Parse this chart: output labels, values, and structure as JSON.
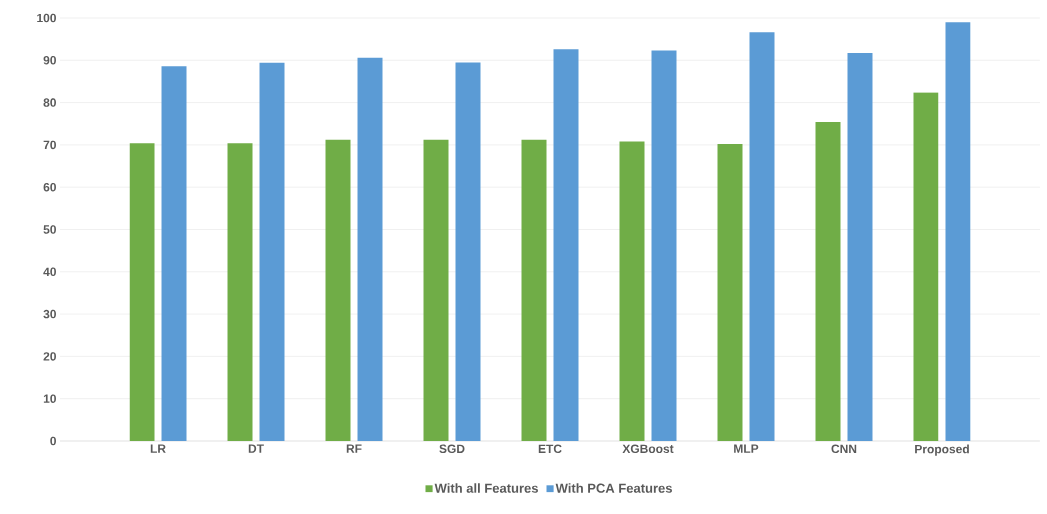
{
  "chart_data": {
    "type": "bar",
    "categories": [
      "LR",
      "DT",
      "RF",
      "SGD",
      "ETC",
      "XGBoost",
      "MLP",
      "CNN",
      "Proposed"
    ],
    "series": [
      {
        "name": "With all Features",
        "color": "#70ad47",
        "values": [
          70.4,
          70.4,
          71.2,
          71.2,
          71.2,
          70.8,
          70.2,
          75.4,
          82.4
        ]
      },
      {
        "name": "With PCA Features",
        "color": "#5b9bd5",
        "values": [
          88.6,
          89.4,
          90.6,
          89.5,
          92.6,
          92.3,
          96.6,
          91.7,
          99.0
        ]
      }
    ],
    "ylim": [
      0,
      100
    ],
    "yticks": [
      0,
      10,
      20,
      30,
      40,
      50,
      60,
      70,
      80,
      90,
      100
    ],
    "grid": "y",
    "legend": "bottom"
  }
}
